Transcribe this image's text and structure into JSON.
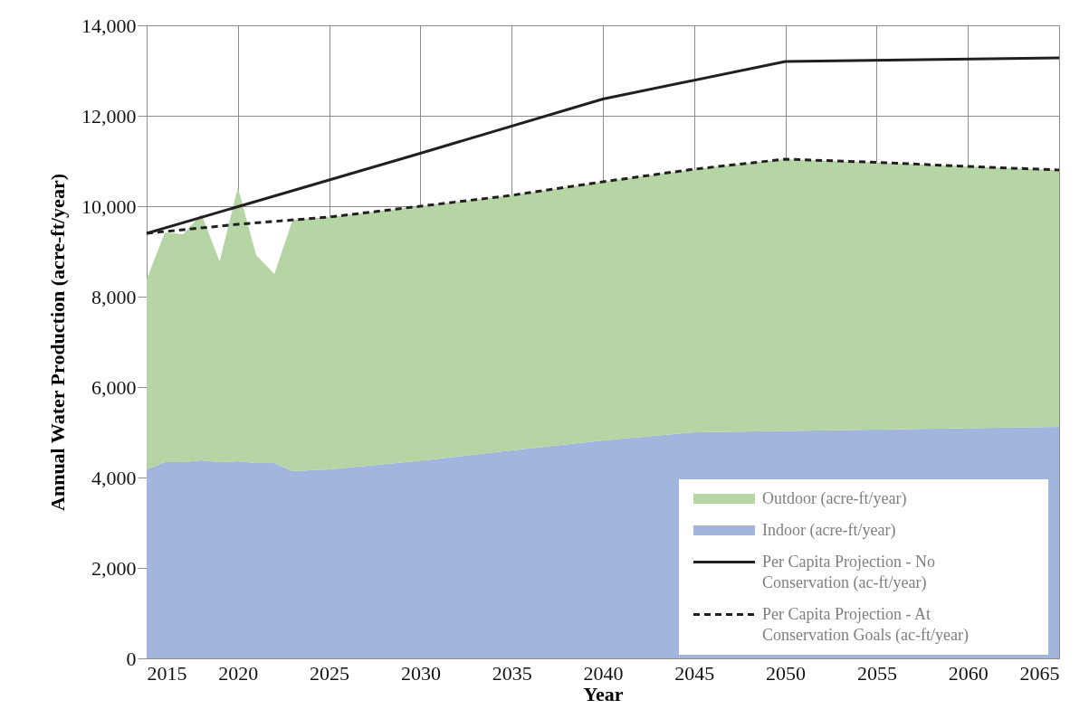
{
  "chart_data": {
    "type": "area",
    "stacked": true,
    "xlabel": "Year",
    "ylabel": "Annual Water Production (acre-ft/year)",
    "x": [
      2015,
      2016,
      2017,
      2018,
      2019,
      2020,
      2021,
      2022,
      2023,
      2025,
      2030,
      2035,
      2040,
      2045,
      2050,
      2055,
      2060,
      2065
    ],
    "series": [
      {
        "name": "Indoor (acre-ft/year)",
        "color": "#a2b6dd",
        "values": [
          4180,
          4340,
          4340,
          4380,
          4340,
          4360,
          4320,
          4320,
          4140,
          4180,
          4370,
          4600,
          4820,
          5000,
          5030,
          5060,
          5090,
          5120
        ]
      },
      {
        "name": "Outdoor (acre-ft/year)",
        "color": "#b6d5a4",
        "values": [
          4200,
          5080,
          5040,
          5440,
          4440,
          6060,
          4600,
          4180,
          5560,
          5580,
          5630,
          5640,
          5720,
          5820,
          6010,
          5910,
          5790,
          5680
        ]
      },
      {
        "name": "Per Capita Projection - No Conservation (ac-ft/year)",
        "type": "line",
        "color": "#231f20",
        "line_style": "solid",
        "x": [
          2015,
          2030,
          2040,
          2050,
          2065
        ],
        "values": [
          9400,
          11170,
          12370,
          13200,
          13280
        ]
      },
      {
        "name": "Per Capita Projection - At Conservation Goals (ac-ft/year)",
        "type": "line",
        "color": "#231f20",
        "line_style": "dashed",
        "x": [
          2015,
          2020,
          2025,
          2030,
          2035,
          2040,
          2045,
          2050,
          2055,
          2060,
          2065
        ],
        "values": [
          9400,
          9600,
          9760,
          10000,
          10240,
          10540,
          10820,
          11040,
          10970,
          10880,
          10800
        ]
      }
    ],
    "xlim": [
      2015,
      2065
    ],
    "xticks": [
      2015,
      2020,
      2025,
      2030,
      2035,
      2040,
      2045,
      2050,
      2055,
      2060,
      2065
    ],
    "ylim": [
      0,
      14000
    ],
    "yticks": [
      {
        "value": 0,
        "label": "0"
      },
      {
        "value": 2000,
        "label": "2,000"
      },
      {
        "value": 4000,
        "label": "4,000"
      },
      {
        "value": 6000,
        "label": "6,000"
      },
      {
        "value": 8000,
        "label": "8,000"
      },
      {
        "value": 10000,
        "label": "10,000"
      },
      {
        "value": 12000,
        "label": "12,000"
      },
      {
        "value": 14000,
        "label": "14,000"
      }
    ],
    "grid": true,
    "legend": "bottom right"
  }
}
